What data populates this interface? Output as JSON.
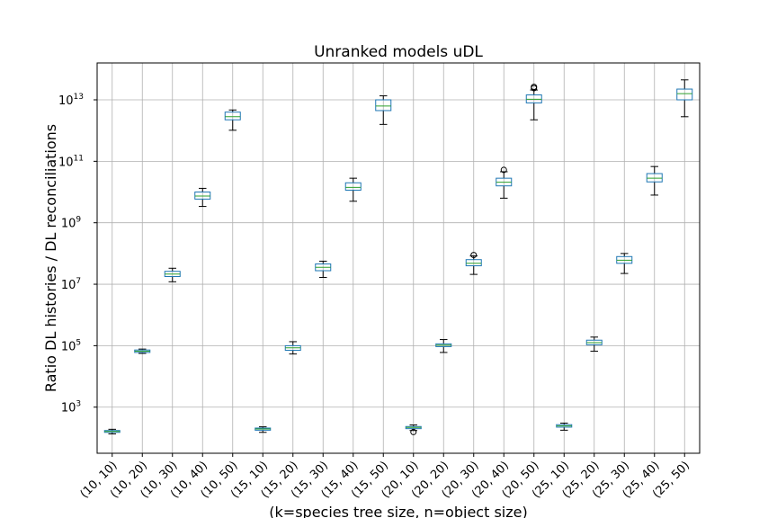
{
  "chart_data": {
    "type": "box",
    "title": "Unranked models uDL",
    "xlabel": "(k=species tree size, n=object size)",
    "ylabel": "Ratio DL histories / DL reconciliations",
    "yscale": "log",
    "ylim_log10": [
      1.5,
      14.2
    ],
    "ytick_exponents": [
      "3",
      "5",
      "7",
      "9",
      "11",
      "13"
    ],
    "ytick_base": "10",
    "grid": true,
    "colors": {
      "box": "#1f77b4",
      "median": "#2ca02c",
      "whisker": "#000000",
      "grid": "#b0b0b0"
    },
    "categories": [
      "(10, 10)",
      "(10, 20)",
      "(10, 30)",
      "(10, 40)",
      "(10, 50)",
      "(15, 10)",
      "(15, 20)",
      "(15, 30)",
      "(15, 40)",
      "(15, 50)",
      "(20, 10)",
      "(20, 20)",
      "(20, 30)",
      "(20, 40)",
      "(20, 50)",
      "(25, 10)",
      "(25, 20)",
      "(25, 30)",
      "(25, 40)",
      "(25, 50)"
    ],
    "boxes_log10": [
      {
        "whislo": 2.13,
        "q1": 2.18,
        "med": 2.21,
        "q3": 2.24,
        "whishi": 2.28,
        "fliers": []
      },
      {
        "whislo": 4.75,
        "q1": 4.78,
        "med": 4.82,
        "q3": 4.86,
        "whishi": 4.89,
        "fliers": []
      },
      {
        "whislo": 7.08,
        "q1": 7.25,
        "med": 7.33,
        "q3": 7.42,
        "whishi": 7.52,
        "fliers": []
      },
      {
        "whislo": 9.53,
        "q1": 9.77,
        "med": 9.87,
        "q3": 10.0,
        "whishi": 10.12,
        "fliers": []
      },
      {
        "whislo": 12.01,
        "q1": 12.35,
        "med": 12.45,
        "q3": 12.6,
        "whishi": 12.67,
        "fliers": []
      },
      {
        "whislo": 2.18,
        "q1": 2.25,
        "med": 2.29,
        "q3": 2.32,
        "whishi": 2.36,
        "fliers": []
      },
      {
        "whislo": 4.73,
        "q1": 4.85,
        "med": 4.93,
        "q3": 5.0,
        "whishi": 5.13,
        "fliers": []
      },
      {
        "whislo": 7.22,
        "q1": 7.44,
        "med": 7.55,
        "q3": 7.66,
        "whishi": 7.75,
        "fliers": []
      },
      {
        "whislo": 9.7,
        "q1": 10.06,
        "med": 10.15,
        "q3": 10.3,
        "whishi": 10.45,
        "fliers": []
      },
      {
        "whislo": 12.2,
        "q1": 12.65,
        "med": 12.8,
        "q3": 13.0,
        "whishi": 13.13,
        "fliers": []
      },
      {
        "whislo": 2.24,
        "q1": 2.3,
        "med": 2.34,
        "q3": 2.37,
        "whishi": 2.42,
        "fliers": [
          2.19
        ]
      },
      {
        "whislo": 4.78,
        "q1": 4.97,
        "med": 5.02,
        "q3": 5.06,
        "whishi": 5.2,
        "fliers": []
      },
      {
        "whislo": 7.32,
        "q1": 7.6,
        "med": 7.68,
        "q3": 7.8,
        "whishi": 7.92,
        "fliers": [
          7.95
        ]
      },
      {
        "whislo": 9.8,
        "q1": 10.2,
        "med": 10.32,
        "q3": 10.45,
        "whishi": 10.66,
        "fliers": [
          10.72
        ]
      },
      {
        "whislo": 12.35,
        "q1": 12.9,
        "med": 13.02,
        "q3": 13.16,
        "whishi": 13.32,
        "fliers": [
          13.38,
          13.42
        ]
      },
      {
        "whislo": 2.25,
        "q1": 2.35,
        "med": 2.39,
        "q3": 2.43,
        "whishi": 2.48,
        "fliers": []
      },
      {
        "whislo": 4.82,
        "q1": 5.03,
        "med": 5.1,
        "q3": 5.18,
        "whishi": 5.28,
        "fliers": []
      },
      {
        "whislo": 7.35,
        "q1": 7.68,
        "med": 7.78,
        "q3": 7.9,
        "whishi": 8.0,
        "fliers": []
      },
      {
        "whislo": 9.9,
        "q1": 10.33,
        "med": 10.45,
        "q3": 10.6,
        "whishi": 10.83,
        "fliers": []
      },
      {
        "whislo": 12.45,
        "q1": 13.0,
        "med": 13.2,
        "q3": 13.35,
        "whishi": 13.65,
        "fliers": []
      }
    ]
  }
}
